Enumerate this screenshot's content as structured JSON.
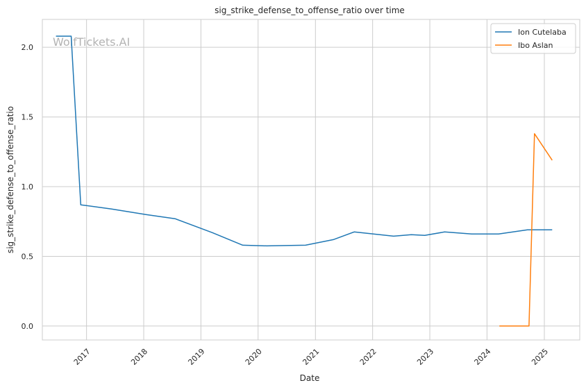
{
  "chart_data": {
    "type": "line",
    "title": "sig_strike_defense_to_offense_ratio over time",
    "xlabel": "Date",
    "ylabel": "sig_strike_defense_to_offense_ratio",
    "watermark": "WolfTickets.AI",
    "x_ticks": [
      "2017",
      "2018",
      "2019",
      "2020",
      "2021",
      "2022",
      "2023",
      "2024",
      "2025"
    ],
    "y_ticks": [
      "0.0",
      "0.5",
      "1.0",
      "1.5",
      "2.0"
    ],
    "xlim": [
      "2016-03-25",
      "2025-08-15"
    ],
    "ylim": [
      -0.1,
      2.2
    ],
    "grid": true,
    "legend_position": "top-right",
    "series": [
      {
        "name": "Ion Cutelaba",
        "color": "#1f77b4",
        "points": [
          [
            "2016-06-20",
            2.08
          ],
          [
            "2016-09-25",
            2.08
          ],
          [
            "2016-11-25",
            0.87
          ],
          [
            "2017-06-10",
            0.84
          ],
          [
            "2018-01-15",
            0.8
          ],
          [
            "2018-07-20",
            0.77
          ],
          [
            "2019-03-15",
            0.67
          ],
          [
            "2019-09-25",
            0.58
          ],
          [
            "2020-02-25",
            0.575
          ],
          [
            "2020-10-30",
            0.58
          ],
          [
            "2021-04-25",
            0.62
          ],
          [
            "2021-09-05",
            0.675
          ],
          [
            "2022-05-15",
            0.645
          ],
          [
            "2022-09-05",
            0.655
          ],
          [
            "2022-11-30",
            0.65
          ],
          [
            "2023-04-05",
            0.675
          ],
          [
            "2023-09-25",
            0.66
          ],
          [
            "2024-03-15",
            0.66
          ],
          [
            "2024-09-15",
            0.69
          ],
          [
            "2025-02-20",
            0.69
          ]
        ]
      },
      {
        "name": "Ibo Aslan",
        "color": "#ff7f0e",
        "points": [
          [
            "2024-03-20",
            0.0
          ],
          [
            "2024-09-25",
            0.0
          ],
          [
            "2024-10-30",
            1.38
          ],
          [
            "2025-02-20",
            1.19
          ]
        ]
      }
    ]
  }
}
